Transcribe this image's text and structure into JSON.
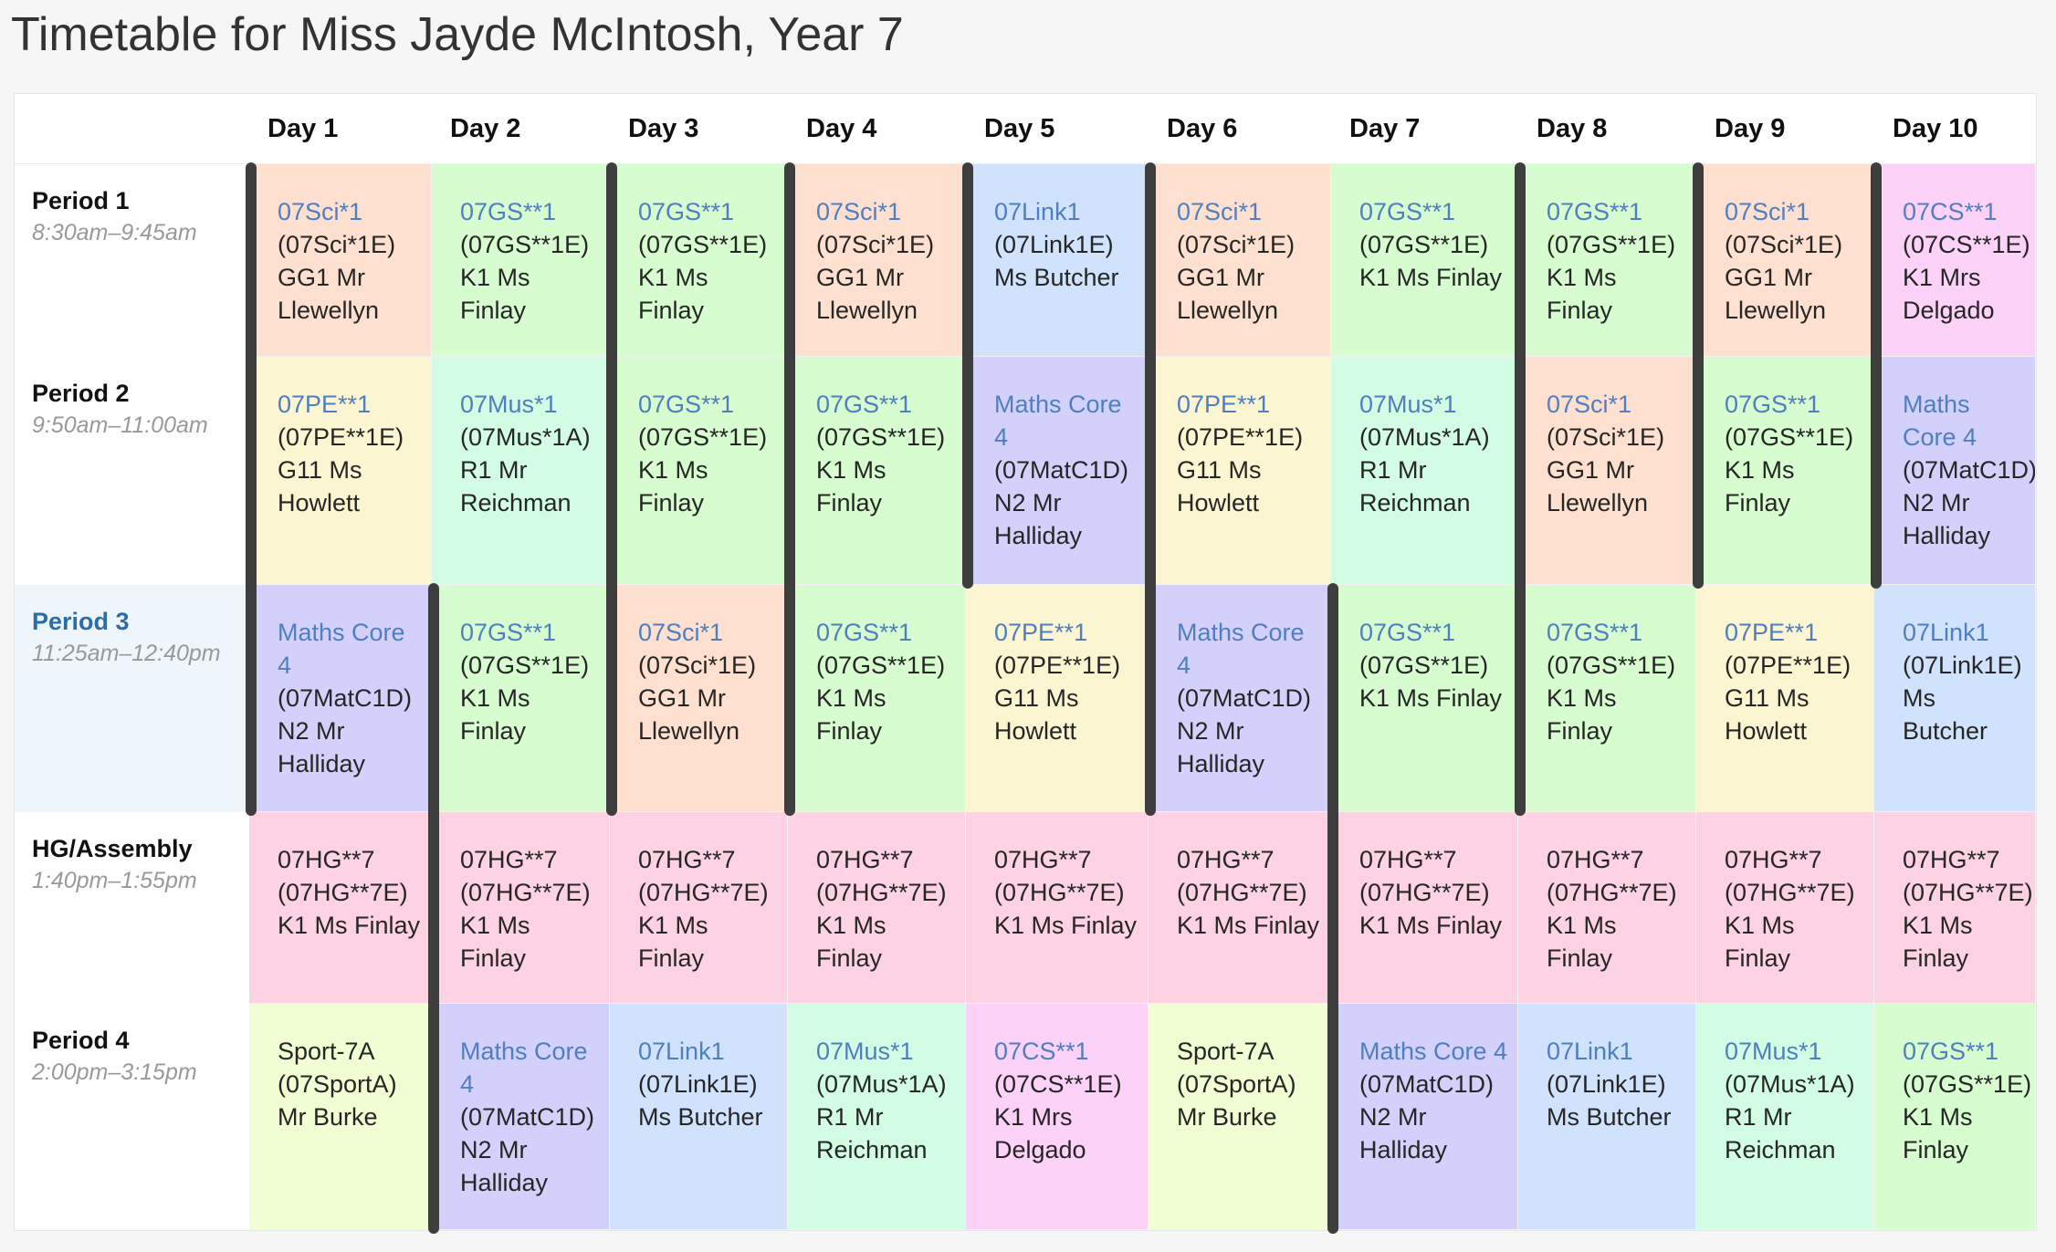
{
  "title": "Timetable for Miss Jayde McIntosh, Year 7",
  "colors": {
    "sci": "#fde0cf",
    "gs": "#d6fcd0",
    "link": "#d1e2fd",
    "cs": "#fdd2f8",
    "pe": "#fcf5d1",
    "mus": "#d2fde4",
    "maths": "#d3d1fc",
    "hg": "#fdd2e2",
    "sport": "#f1fdd2",
    "link_text": "#4f7fc0",
    "current_period": "#2c6da5"
  },
  "days": [
    "Day 1",
    "Day 2",
    "Day 3",
    "Day 4",
    "Day 5",
    "Day 6",
    "Day 7",
    "Day 8",
    "Day 9",
    "Day 10"
  ],
  "periods": [
    {
      "name": "Period 1",
      "time": "8:30am–9:45am"
    },
    {
      "name": "Period 2",
      "time": "9:50am–11:00am"
    },
    {
      "name": "Period 3",
      "time": "11:25am–12:40pm",
      "current": true
    },
    {
      "name": "HG/Assembly",
      "time": "1:40pm–1:55pm"
    },
    {
      "name": "Period 4",
      "time": "2:00pm–3:15pm"
    }
  ],
  "rows": [
    [
      {
        "subject": "07Sci*1",
        "details": "(07Sci*1E) GG1 Mr Llewellyn",
        "color": "sci",
        "link": true
      },
      {
        "subject": "07GS**1",
        "details": "(07GS**1E) K1 Ms Finlay",
        "color": "gs",
        "link": true
      },
      {
        "subject": "07GS**1",
        "details": "(07GS**1E) K1 Ms Finlay",
        "color": "gs",
        "link": true
      },
      {
        "subject": "07Sci*1",
        "details": "(07Sci*1E) GG1 Mr Llewellyn",
        "color": "sci",
        "link": true
      },
      {
        "subject": "07Link1",
        "details": "(07Link1E) Ms Butcher",
        "color": "link",
        "link": true
      },
      {
        "subject": "07Sci*1",
        "details": "(07Sci*1E) GG1 Mr Llewellyn",
        "color": "sci",
        "link": true
      },
      {
        "subject": "07GS**1",
        "details": "(07GS**1E) K1 Ms Finlay",
        "color": "gs",
        "link": true
      },
      {
        "subject": "07GS**1",
        "details": "(07GS**1E) K1 Ms Finlay",
        "color": "gs",
        "link": true
      },
      {
        "subject": "07Sci*1",
        "details": "(07Sci*1E) GG1 Mr Llewellyn",
        "color": "sci",
        "link": true
      },
      {
        "subject": "07CS**1",
        "details": "(07CS**1E) K1 Mrs Delgado",
        "color": "cs",
        "link": true
      }
    ],
    [
      {
        "subject": "07PE**1",
        "details": "(07PE**1E) G11 Ms Howlett",
        "color": "pe",
        "link": true
      },
      {
        "subject": "07Mus*1",
        "details": "(07Mus*1A) R1 Mr Reichman",
        "color": "mus",
        "link": true
      },
      {
        "subject": "07GS**1",
        "details": "(07GS**1E) K1 Ms Finlay",
        "color": "gs",
        "link": true
      },
      {
        "subject": "07GS**1",
        "details": "(07GS**1E) K1 Ms Finlay",
        "color": "gs",
        "link": true
      },
      {
        "subject": "Maths Core 4",
        "details": "(07MatC1D) N2 Mr Halliday",
        "color": "maths",
        "link": true
      },
      {
        "subject": "07PE**1",
        "details": "(07PE**1E) G11 Ms Howlett",
        "color": "pe",
        "link": true
      },
      {
        "subject": "07Mus*1",
        "details": "(07Mus*1A) R1 Mr Reichman",
        "color": "mus",
        "link": true
      },
      {
        "subject": "07Sci*1",
        "details": "(07Sci*1E) GG1 Mr Llewellyn",
        "color": "sci",
        "link": true
      },
      {
        "subject": "07GS**1",
        "details": "(07GS**1E) K1 Ms Finlay",
        "color": "gs",
        "link": true
      },
      {
        "subject": "Maths Core 4",
        "details": "(07MatC1D) N2 Mr Halliday",
        "color": "maths",
        "link": true
      }
    ],
    [
      {
        "subject": "Maths Core 4",
        "details": "(07MatC1D) N2 Mr Halliday",
        "color": "maths",
        "link": true
      },
      {
        "subject": "07GS**1",
        "details": "(07GS**1E) K1 Ms Finlay",
        "color": "gs",
        "link": true
      },
      {
        "subject": "07Sci*1",
        "details": "(07Sci*1E) GG1 Mr Llewellyn",
        "color": "sci",
        "link": true
      },
      {
        "subject": "07GS**1",
        "details": "(07GS**1E) K1 Ms Finlay",
        "color": "gs",
        "link": true
      },
      {
        "subject": "07PE**1",
        "details": "(07PE**1E) G11 Ms Howlett",
        "color": "pe",
        "link": true
      },
      {
        "subject": "Maths Core 4",
        "details": "(07MatC1D) N2 Mr Halliday",
        "color": "maths",
        "link": true
      },
      {
        "subject": "07GS**1",
        "details": "(07GS**1E) K1 Ms Finlay",
        "color": "gs",
        "link": true
      },
      {
        "subject": "07GS**1",
        "details": "(07GS**1E) K1 Ms Finlay",
        "color": "gs",
        "link": true
      },
      {
        "subject": "07PE**1",
        "details": "(07PE**1E) G11 Ms Howlett",
        "color": "pe",
        "link": true
      },
      {
        "subject": "07Link1",
        "details": "(07Link1E) Ms Butcher",
        "color": "link",
        "link": true
      }
    ],
    [
      {
        "subject": "07HG**7",
        "details": "(07HG**7E) K1 Ms Finlay",
        "color": "hg",
        "link": false
      },
      {
        "subject": "07HG**7",
        "details": "(07HG**7E) K1 Ms Finlay",
        "color": "hg",
        "link": false
      },
      {
        "subject": "07HG**7",
        "details": "(07HG**7E) K1 Ms Finlay",
        "color": "hg",
        "link": false
      },
      {
        "subject": "07HG**7",
        "details": "(07HG**7E) K1 Ms Finlay",
        "color": "hg",
        "link": false
      },
      {
        "subject": "07HG**7",
        "details": "(07HG**7E) K1 Ms Finlay",
        "color": "hg",
        "link": false
      },
      {
        "subject": "07HG**7",
        "details": "(07HG**7E) K1 Ms Finlay",
        "color": "hg",
        "link": false
      },
      {
        "subject": "07HG**7",
        "details": "(07HG**7E) K1 Ms Finlay",
        "color": "hg",
        "link": false
      },
      {
        "subject": "07HG**7",
        "details": "(07HG**7E) K1 Ms Finlay",
        "color": "hg",
        "link": false
      },
      {
        "subject": "07HG**7",
        "details": "(07HG**7E) K1 Ms Finlay",
        "color": "hg",
        "link": false
      },
      {
        "subject": "07HG**7",
        "details": "(07HG**7E) K1 Ms Finlay",
        "color": "hg",
        "link": false
      }
    ],
    [
      {
        "subject": "Sport-7A",
        "details": "(07SportA) Mr Burke",
        "color": "sport",
        "link": false
      },
      {
        "subject": "Maths Core 4",
        "details": "(07MatC1D) N2 Mr Halliday",
        "color": "maths",
        "link": true
      },
      {
        "subject": "07Link1",
        "details": "(07Link1E) Ms Butcher",
        "color": "link",
        "link": true
      },
      {
        "subject": "07Mus*1",
        "details": "(07Mus*1A) R1 Mr Reichman",
        "color": "mus",
        "link": true
      },
      {
        "subject": "07CS**1",
        "details": "(07CS**1E) K1 Mrs Delgado",
        "color": "cs",
        "link": true
      },
      {
        "subject": "Sport-7A",
        "details": "(07SportA) Mr Burke",
        "color": "sport",
        "link": false
      },
      {
        "subject": "Maths Core 4",
        "details": "(07MatC1D) N2 Mr Halliday",
        "color": "maths",
        "link": true
      },
      {
        "subject": "07Link1",
        "details": "(07Link1E) Ms Butcher",
        "color": "link",
        "link": true
      },
      {
        "subject": "07Mus*1",
        "details": "(07Mus*1A) R1 Mr Reichman",
        "color": "mus",
        "link": true
      },
      {
        "subject": "07GS**1",
        "details": "(07GS**1E) K1 Ms Finlay",
        "color": "gs",
        "link": true
      }
    ]
  ],
  "day_divider_markers": [
    {
      "day": 1,
      "from_row": 0,
      "to_row": 2
    },
    {
      "day": 2,
      "from_row": 2,
      "to_row": 4
    },
    {
      "day": 3,
      "from_row": 0,
      "to_row": 2
    },
    {
      "day": 4,
      "from_row": 0,
      "to_row": 2
    },
    {
      "day": 5,
      "from_row": 0,
      "to_row": 1
    },
    {
      "day": 6,
      "from_row": 0,
      "to_row": 2
    },
    {
      "day": 7,
      "from_row": 2,
      "to_row": 4
    },
    {
      "day": 8,
      "from_row": 0,
      "to_row": 2
    },
    {
      "day": 9,
      "from_row": 0,
      "to_row": 1
    },
    {
      "day": 10,
      "from_row": 0,
      "to_row": 1
    }
  ]
}
